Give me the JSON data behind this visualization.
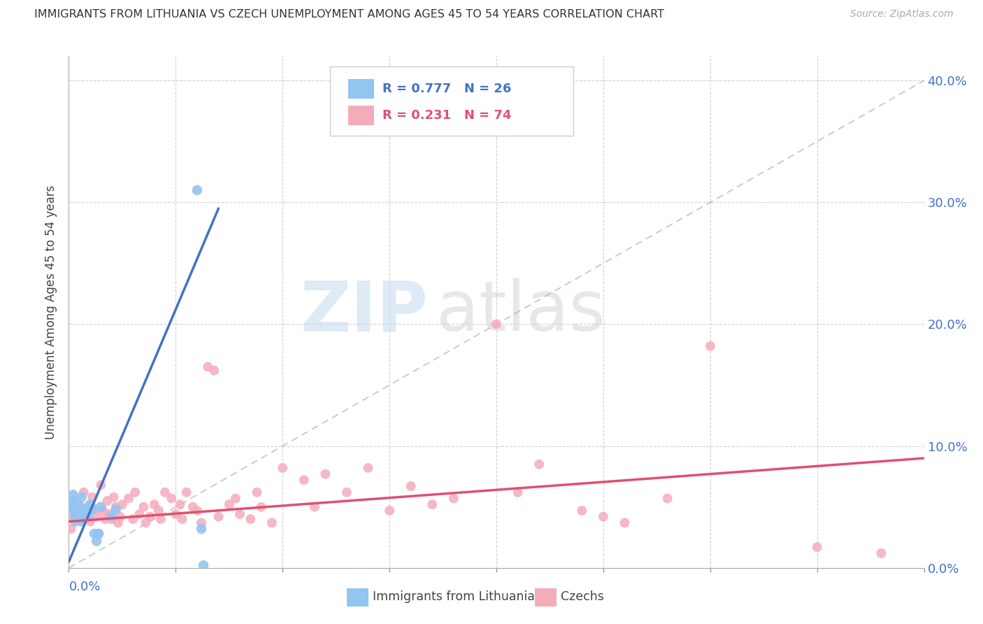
{
  "title": "IMMIGRANTS FROM LITHUANIA VS CZECH UNEMPLOYMENT AMONG AGES 45 TO 54 YEARS CORRELATION CHART",
  "source": "Source: ZipAtlas.com",
  "ylabel": "Unemployment Among Ages 45 to 54 years",
  "xlim": [
    0.0,
    0.4
  ],
  "ylim": [
    0.0,
    0.42
  ],
  "legend_label1": "Immigrants from Lithuania",
  "legend_label2": "Czechs",
  "R1": 0.777,
  "N1": 26,
  "R2": 0.231,
  "N2": 74,
  "color_blue": "#92C5F0",
  "color_pink": "#F4ACBA",
  "color_blue_text": "#4472C4",
  "color_pink_text": "#E05070",
  "watermark_zip": "ZIP",
  "watermark_atlas": "atlas",
  "yticks": [
    0.0,
    0.1,
    0.2,
    0.3,
    0.4
  ],
  "ytick_labels": [
    "0.0%",
    "10.0%",
    "20.0%",
    "30.0%",
    "40.0%"
  ],
  "lith_trend_x": [
    0.0,
    0.07
  ],
  "lith_trend_y": [
    0.005,
    0.295
  ],
  "czech_trend_x": [
    0.0,
    0.4
  ],
  "czech_trend_y": [
    0.038,
    0.09
  ],
  "lith_x": [
    0.001,
    0.002,
    0.002,
    0.003,
    0.003,
    0.004,
    0.004,
    0.005,
    0.005,
    0.006,
    0.006,
    0.007,
    0.008,
    0.009,
    0.01,
    0.011,
    0.012,
    0.013,
    0.014,
    0.015,
    0.02,
    0.022,
    0.062,
    0.063,
    0.002,
    0.06
  ],
  "lith_y": [
    0.05,
    0.055,
    0.048,
    0.043,
    0.038,
    0.045,
    0.052,
    0.04,
    0.046,
    0.038,
    0.058,
    0.048,
    0.044,
    0.042,
    0.052,
    0.048,
    0.028,
    0.022,
    0.028,
    0.05,
    0.042,
    0.048,
    0.032,
    0.002,
    0.06,
    0.31
  ],
  "czech_x": [
    0.001,
    0.002,
    0.003,
    0.004,
    0.005,
    0.006,
    0.007,
    0.008,
    0.009,
    0.01,
    0.011,
    0.012,
    0.013,
    0.014,
    0.015,
    0.016,
    0.017,
    0.018,
    0.019,
    0.02,
    0.021,
    0.022,
    0.023,
    0.024,
    0.025,
    0.028,
    0.03,
    0.031,
    0.033,
    0.035,
    0.036,
    0.038,
    0.04,
    0.042,
    0.043,
    0.045,
    0.048,
    0.05,
    0.052,
    0.053,
    0.055,
    0.058,
    0.06,
    0.062,
    0.065,
    0.068,
    0.07,
    0.075,
    0.078,
    0.08,
    0.085,
    0.088,
    0.09,
    0.095,
    0.1,
    0.11,
    0.115,
    0.12,
    0.13,
    0.14,
    0.15,
    0.16,
    0.17,
    0.18,
    0.2,
    0.21,
    0.22,
    0.24,
    0.25,
    0.26,
    0.28,
    0.3,
    0.35,
    0.38
  ],
  "czech_y": [
    0.032,
    0.042,
    0.055,
    0.045,
    0.052,
    0.04,
    0.062,
    0.044,
    0.05,
    0.038,
    0.058,
    0.048,
    0.042,
    0.028,
    0.068,
    0.047,
    0.04,
    0.055,
    0.044,
    0.04,
    0.058,
    0.05,
    0.037,
    0.042,
    0.052,
    0.057,
    0.04,
    0.062,
    0.044,
    0.05,
    0.037,
    0.042,
    0.052,
    0.047,
    0.04,
    0.062,
    0.057,
    0.044,
    0.052,
    0.04,
    0.062,
    0.05,
    0.047,
    0.037,
    0.165,
    0.162,
    0.042,
    0.052,
    0.057,
    0.044,
    0.04,
    0.062,
    0.05,
    0.037,
    0.082,
    0.072,
    0.05,
    0.077,
    0.062,
    0.082,
    0.047,
    0.067,
    0.052,
    0.057,
    0.2,
    0.062,
    0.085,
    0.047,
    0.042,
    0.037,
    0.057,
    0.182,
    0.017,
    0.012
  ]
}
